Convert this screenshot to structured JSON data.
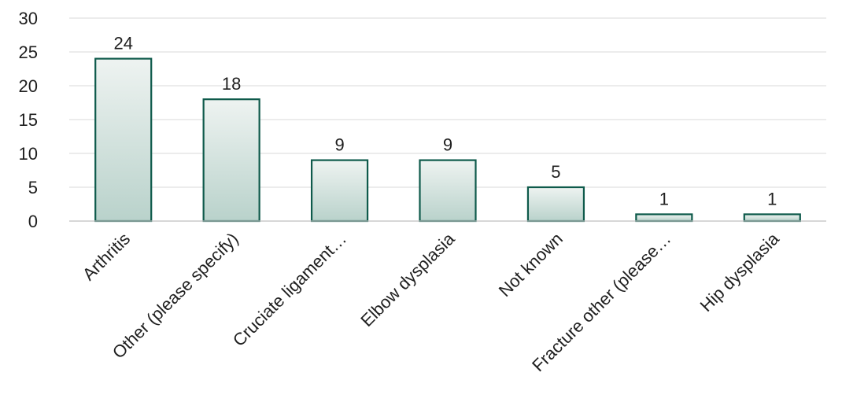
{
  "chart_data": {
    "type": "bar",
    "title": "",
    "xlabel": "",
    "ylabel": "",
    "categories": [
      "Arthritis",
      "Other (please specify)",
      "Cruciate ligament…",
      "Elbow dysplasia",
      "Not known",
      "Fracture other (please…",
      "Hip dysplasia"
    ],
    "values": [
      24,
      18,
      9,
      9,
      5,
      1,
      1
    ],
    "ylim": [
      0,
      30
    ],
    "yticks": [
      0,
      5,
      10,
      15,
      20,
      25,
      30
    ],
    "grid": true,
    "legend": "none",
    "data_labels": true,
    "colors": {
      "bar_stroke": "#0e5a4b",
      "bar_fill_top": "#eef3f1",
      "bar_fill_bottom": "#b9d2cb",
      "grid": "#d9d9d9",
      "text": "#1f1f1f"
    }
  }
}
